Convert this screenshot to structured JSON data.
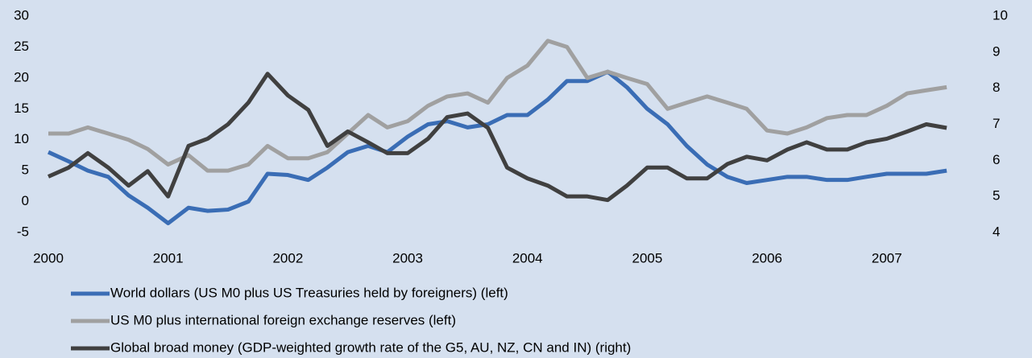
{
  "chart_data": {
    "type": "line",
    "x": [
      2000,
      2000.17,
      2000.33,
      2000.5,
      2000.67,
      2000.83,
      2001,
      2001.17,
      2001.33,
      2001.5,
      2001.67,
      2001.83,
      2002,
      2002.17,
      2002.33,
      2002.5,
      2002.67,
      2002.83,
      2003,
      2003.17,
      2003.33,
      2003.5,
      2003.67,
      2003.83,
      2004,
      2004.17,
      2004.33,
      2004.5,
      2004.67,
      2004.83,
      2005,
      2005.17,
      2005.33,
      2005.5,
      2005.67,
      2005.83,
      2006,
      2006.17,
      2006.33,
      2006.5,
      2006.67,
      2006.83,
      2007,
      2007.17,
      2007.33,
      2007.5
    ],
    "series": [
      {
        "name": "World dollars (US M0 plus US Treasuries held by foreigners) (left)",
        "color": "#3a6db5",
        "values": [
          8,
          6.5,
          5,
          4,
          1,
          -1,
          -3.5,
          -1,
          -1.5,
          -1.3,
          0,
          4.5,
          4.3,
          3.5,
          5.5,
          8,
          9,
          8,
          10.5,
          12.5,
          13,
          12,
          12.5,
          14,
          14,
          16.5,
          19.5,
          19.5,
          21,
          18.5,
          15,
          12.5,
          9,
          6,
          4,
          3,
          3.5,
          4,
          4,
          3.5,
          3.5,
          4,
          4.5,
          4.5,
          4.5,
          5
        ]
      },
      {
        "name": "US M0 plus international foreign exchange reserves (left)",
        "color": "#a0a0a0",
        "values": [
          11,
          11,
          12,
          11,
          10,
          8.5,
          6,
          7.5,
          5,
          5,
          6,
          9,
          7,
          7,
          8,
          11,
          14,
          12,
          13,
          15.5,
          17,
          17.5,
          16,
          20,
          22,
          26,
          25,
          20,
          21,
          20,
          19,
          15,
          16,
          17,
          16,
          15,
          11.5,
          11,
          12,
          13.5,
          14,
          14,
          15.5,
          17.5,
          18,
          18.5
        ]
      },
      {
        "name": "Global broad money (GDP-weighted growth rate of the G5, AU, NZ, CN and IN) (right)",
        "color": "#404040",
        "axis": "y2",
        "values": [
          5.55,
          5.8,
          6.2,
          5.8,
          5.3,
          5.7,
          5.0,
          6.4,
          6.6,
          7.0,
          7.6,
          8.4,
          7.8,
          7.4,
          6.4,
          6.8,
          6.5,
          6.2,
          6.2,
          6.6,
          7.2,
          7.3,
          6.9,
          5.8,
          5.5,
          5.3,
          5.0,
          5.0,
          4.9,
          5.3,
          5.8,
          5.8,
          5.5,
          5.5,
          5.9,
          6.1,
          6.0,
          6.3,
          6.5,
          6.3,
          6.3,
          6.5,
          6.6,
          6.8,
          7.0,
          6.9
        ]
      }
    ],
    "xlim": [
      2000,
      2007.6
    ],
    "xticks": [
      2000,
      2001,
      2002,
      2003,
      2004,
      2005,
      2006,
      2007
    ],
    "ylim": [
      -5,
      30
    ],
    "yticks": [
      -5,
      0,
      5,
      10,
      15,
      20,
      25,
      30
    ],
    "y2lim": [
      4,
      10
    ],
    "y2ticks": [
      4,
      5,
      6,
      7,
      8,
      9,
      10
    ]
  }
}
